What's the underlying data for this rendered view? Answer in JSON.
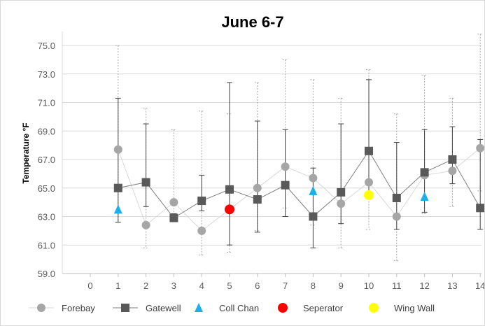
{
  "chart_data": {
    "type": "scatter",
    "title": "June 6-7",
    "ylabel": "Temperature °F",
    "xlabel": "",
    "xlim": [
      0,
      14
    ],
    "ylim": [
      59,
      76
    ],
    "x_ticks": [
      0,
      1,
      2,
      3,
      4,
      5,
      6,
      7,
      8,
      9,
      10,
      11,
      12,
      13,
      14
    ],
    "y_ticks": [
      59.0,
      61.0,
      63.0,
      65.0,
      67.0,
      69.0,
      71.0,
      73.0,
      75.0
    ],
    "y_tick_labels": [
      "59.0",
      "61.0",
      "63.0",
      "65.0",
      "67.0",
      "69.0",
      "71.0",
      "73.0",
      "75.0"
    ],
    "grid": "horizontal",
    "legend_position": "bottom",
    "series": [
      {
        "name": "Forebay",
        "marker": "circle",
        "color": "#a6a6a6",
        "line_color": "#d9d9d9",
        "error_style": "dotted",
        "points": [
          {
            "x": 1,
            "y": 67.7,
            "low": 62.6,
            "high": 75.0
          },
          {
            "x": 2,
            "y": 62.4,
            "low": 60.8,
            "high": 70.6
          },
          {
            "x": 3,
            "y": 64.0,
            "low": 62.7,
            "high": 69.1
          },
          {
            "x": 4,
            "y": 62.0,
            "low": 60.3,
            "high": 70.4
          },
          {
            "x": 5,
            "y": 63.5,
            "low": 60.5,
            "high": 70.2
          },
          {
            "x": 6,
            "y": 65.0,
            "low": 62.0,
            "high": 72.4
          },
          {
            "x": 7,
            "y": 66.5,
            "low": 63.6,
            "high": 74.0
          },
          {
            "x": 8,
            "y": 65.7,
            "low": 62.4,
            "high": 72.6
          },
          {
            "x": 9,
            "y": 63.9,
            "low": 60.8,
            "high": 71.3
          },
          {
            "x": 10,
            "y": 65.4,
            "low": 62.1,
            "high": 73.3
          },
          {
            "x": 11,
            "y": 63.0,
            "low": 59.9,
            "high": 70.2
          },
          {
            "x": 12,
            "y": 65.9,
            "low": 63.2,
            "high": 72.9
          },
          {
            "x": 13,
            "y": 66.2,
            "low": 63.7,
            "high": 71.3
          },
          {
            "x": 14,
            "y": 67.8,
            "low": 64.8,
            "high": 75.8
          }
        ]
      },
      {
        "name": "Gatewell",
        "marker": "square",
        "color": "#595959",
        "line_color": "#7f7f7f",
        "error_style": "solid",
        "points": [
          {
            "x": 1,
            "y": 65.0,
            "low": 62.6,
            "high": 71.3
          },
          {
            "x": 2,
            "y": 65.4,
            "low": 63.7,
            "high": 69.5
          },
          {
            "x": 3,
            "y": 62.9,
            "low": 62.7,
            "high": 63.2
          },
          {
            "x": 4,
            "y": 64.1,
            "low": 63.4,
            "high": 65.9
          },
          {
            "x": 5,
            "y": 64.9,
            "low": 61.0,
            "high": 72.4
          },
          {
            "x": 6,
            "y": 64.2,
            "low": 61.9,
            "high": 69.7
          },
          {
            "x": 7,
            "y": 65.2,
            "low": 63.0,
            "high": 69.1
          },
          {
            "x": 8,
            "y": 63.0,
            "low": 60.8,
            "high": 66.4
          },
          {
            "x": 9,
            "y": 64.7,
            "low": 62.5,
            "high": 69.5
          },
          {
            "x": 10,
            "y": 67.6,
            "low": 64.7,
            "high": 72.6
          },
          {
            "x": 11,
            "y": 64.3,
            "low": 62.1,
            "high": 68.2
          },
          {
            "x": 12,
            "y": 66.1,
            "low": 63.3,
            "high": 69.1
          },
          {
            "x": 13,
            "y": 67.0,
            "low": 65.3,
            "high": 69.3
          },
          {
            "x": 14,
            "y": 63.6,
            "low": 62.1,
            "high": 68.4
          }
        ]
      },
      {
        "name": "Coll Chan",
        "marker": "triangle",
        "color": "#1ab0e8",
        "points": [
          {
            "x": 1,
            "y": 63.5
          },
          {
            "x": 8,
            "y": 64.8
          },
          {
            "x": 12,
            "y": 64.4
          }
        ]
      },
      {
        "name": "Seperator",
        "marker": "circle",
        "color": "#ff0000",
        "points": [
          {
            "x": 5,
            "y": 63.5
          }
        ]
      },
      {
        "name": "Wing Wall",
        "marker": "circle",
        "color": "#ffff00",
        "points": [
          {
            "x": 10,
            "y": 64.5
          }
        ]
      }
    ]
  }
}
